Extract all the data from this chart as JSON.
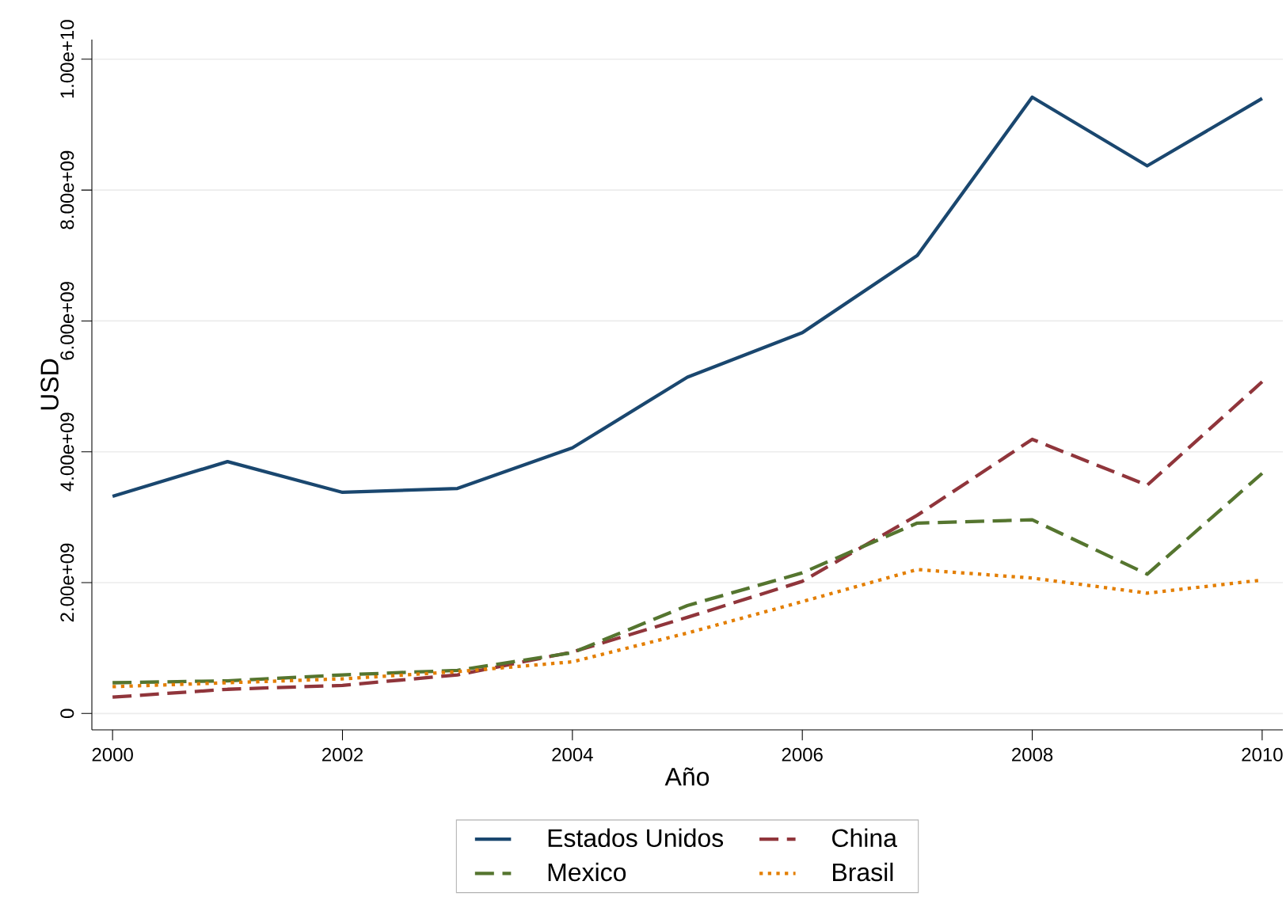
{
  "chart_data": {
    "type": "line",
    "xlabel": "Año",
    "ylabel": "USD",
    "x": [
      2000,
      2001,
      2002,
      2003,
      2004,
      2005,
      2006,
      2007,
      2008,
      2009,
      2010
    ],
    "series": [
      {
        "name": "Estados Unidos",
        "color": "#1a476f",
        "line_style": "solid",
        "values": [
          3320000000.0,
          3850000000.0,
          3380000000.0,
          3440000000.0,
          4060000000.0,
          5140000000.0,
          5820000000.0,
          7000000000.0,
          9420000000.0,
          8370000000.0,
          9400000000.0
        ]
      },
      {
        "name": "China",
        "color": "#90353b",
        "line_style": "dashed",
        "values": [
          250000000.0,
          370000000.0,
          430000000.0,
          590000000.0,
          940000000.0,
          1470000000.0,
          2020000000.0,
          3030000000.0,
          4190000000.0,
          3490000000.0,
          5070000000.0
        ]
      },
      {
        "name": "Mexico",
        "color": "#55752f",
        "line_style": "dashed",
        "values": [
          470000000.0,
          500000000.0,
          590000000.0,
          660000000.0,
          930000000.0,
          1650000000.0,
          2150000000.0,
          2910000000.0,
          2960000000.0,
          2130000000.0,
          3670000000.0
        ]
      },
      {
        "name": "Brasil",
        "color": "#e37e00",
        "line_style": "dotted",
        "values": [
          410000000.0,
          470000000.0,
          530000000.0,
          640000000.0,
          790000000.0,
          1230000000.0,
          1710000000.0,
          2200000000.0,
          2070000000.0,
          1840000000.0,
          2040000000.0
        ]
      }
    ],
    "xlim": [
      1999.82,
      2010.18
    ],
    "xticks": [
      2000,
      2002,
      2004,
      2006,
      2008,
      2010
    ],
    "ylim": [
      -250000000.0,
      10300000000.0
    ],
    "yticks": [
      0,
      {
        "value": 2000000000.0,
        "label": "2.00e+09"
      },
      {
        "value": 4000000000.0,
        "label": "4.00e+09"
      },
      {
        "value": 6000000000.0,
        "label": "6.00e+09"
      },
      {
        "value": 8000000000.0,
        "label": "8.00e+09"
      },
      {
        "value": 10000000000.0,
        "label": "1.00e+10"
      }
    ],
    "grid": "y",
    "legend": "bottom",
    "marker": "none"
  }
}
